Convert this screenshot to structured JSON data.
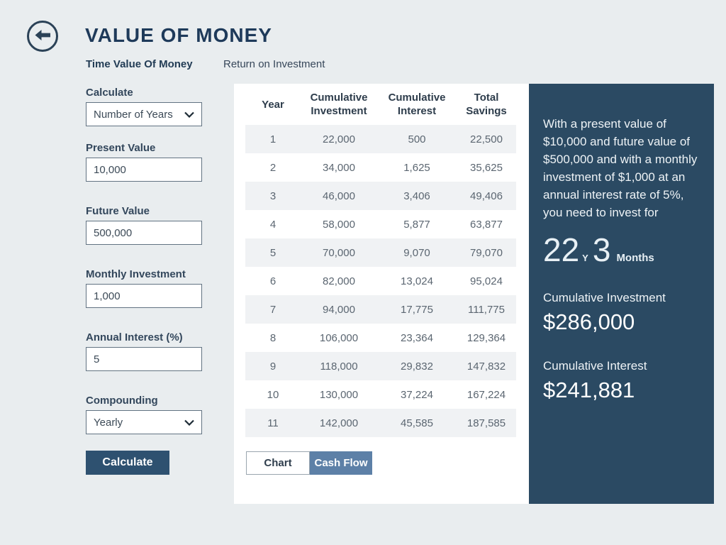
{
  "header": {
    "title": "VALUE OF MONEY",
    "back_icon": "left-arrow"
  },
  "tabs": {
    "time_value": "Time Value Of Money",
    "return_on_investment": "Return on Investment"
  },
  "form": {
    "calculate_label": "Calculate",
    "calculate_selected": "Number of Years",
    "present_value_label": "Present Value",
    "present_value": "10,000",
    "future_value_label": "Future Value",
    "future_value": "500,000",
    "monthly_investment_label": "Monthly Investment",
    "monthly_investment": "1,000",
    "annual_interest_label": "Annual Interest (%)",
    "annual_interest": "5",
    "compounding_label": "Compounding",
    "compounding_selected": "Yearly",
    "calculate_button": "Calculate"
  },
  "table": {
    "headers": [
      "Year",
      "Cumulative Investment",
      "Cumulative Interest",
      "Total Savings"
    ],
    "rows": [
      [
        "1",
        "22,000",
        "500",
        "22,500"
      ],
      [
        "2",
        "34,000",
        "1,625",
        "35,625"
      ],
      [
        "3",
        "46,000",
        "3,406",
        "49,406"
      ],
      [
        "4",
        "58,000",
        "5,877",
        "63,877"
      ],
      [
        "5",
        "70,000",
        "9,070",
        "79,070"
      ],
      [
        "6",
        "82,000",
        "13,024",
        "95,024"
      ],
      [
        "7",
        "94,000",
        "17,775",
        "111,775"
      ],
      [
        "8",
        "106,000",
        "23,364",
        "129,364"
      ],
      [
        "9",
        "118,000",
        "29,832",
        "147,832"
      ],
      [
        "10",
        "130,000",
        "37,224",
        "167,224"
      ],
      [
        "11",
        "142,000",
        "45,585",
        "187,585"
      ]
    ]
  },
  "toggle": {
    "chart": "Chart",
    "cash_flow": "Cash Flow"
  },
  "result": {
    "summary": "With a present value of $10,000 and future value of $500,000 and with a monthly investment of $1,000 at an annual interest rate of 5%, you need to invest for",
    "years_value": "22",
    "years_unit": "Y",
    "months_value": "3",
    "months_unit": "Months",
    "cumulative_investment_label": "Cumulative Investment",
    "cumulative_investment_value": "$286,000",
    "cumulative_interest_label": "Cumulative Interest",
    "cumulative_interest_value": "$241,881"
  },
  "colors": {
    "page_background": "#e9edef",
    "panel_background": "#ffffff",
    "result_panel_background": "#2b4a63",
    "title_text": "#1e3a5a",
    "calculate_button": "#2e5170",
    "active_toggle": "#5d80a7",
    "table_stripe": "#f0f2f4"
  }
}
